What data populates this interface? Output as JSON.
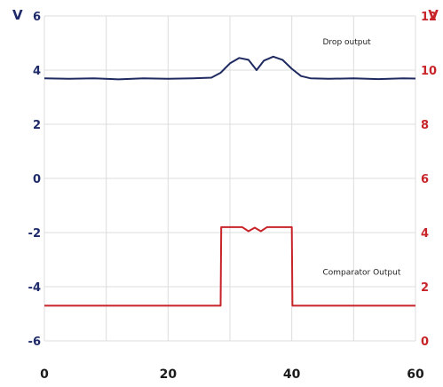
{
  "chart_data": {
    "type": "line",
    "y_left": {
      "unit": "V",
      "ticks": [
        "6",
        "4",
        "2",
        "0",
        "-2",
        "-4",
        "-6"
      ],
      "range": [
        -6,
        6
      ],
      "color": "#1e2a6a"
    },
    "y_right": {
      "unit": "V",
      "ticks": [
        "12",
        "10",
        "8",
        "6",
        "4",
        "2",
        "0"
      ],
      "range": [
        0,
        12
      ],
      "color": "#c8252a"
    },
    "x_axis": {
      "ticks": [
        "0",
        "20",
        "40",
        "60"
      ],
      "range": [
        0,
        60
      ]
    },
    "grid": true,
    "series": [
      {
        "name": "Drop output",
        "axis": "left",
        "color": "#1f2a60",
        "points": [
          [
            0,
            3.7
          ],
          [
            4,
            3.68
          ],
          [
            8,
            3.7
          ],
          [
            12,
            3.66
          ],
          [
            16,
            3.7
          ],
          [
            20,
            3.68
          ],
          [
            24,
            3.7
          ],
          [
            27,
            3.72
          ],
          [
            28.5,
            3.9
          ],
          [
            30,
            4.25
          ],
          [
            31.5,
            4.45
          ],
          [
            33,
            4.38
          ],
          [
            34.3,
            4.0
          ],
          [
            35.5,
            4.35
          ],
          [
            37,
            4.5
          ],
          [
            38.5,
            4.38
          ],
          [
            40,
            4.05
          ],
          [
            41.5,
            3.78
          ],
          [
            43,
            3.7
          ],
          [
            46,
            3.68
          ],
          [
            50,
            3.7
          ],
          [
            54,
            3.67
          ],
          [
            58,
            3.7
          ],
          [
            60,
            3.69
          ]
        ]
      },
      {
        "name": "Comparator Output",
        "axis": "right",
        "color": "#c8252a",
        "points": [
          [
            0,
            1.3
          ],
          [
            28.5,
            1.3
          ],
          [
            28.6,
            4.2
          ],
          [
            32,
            4.2
          ],
          [
            33,
            4.05
          ],
          [
            34,
            4.18
          ],
          [
            35,
            4.05
          ],
          [
            36,
            4.2
          ],
          [
            40,
            4.2
          ],
          [
            40.1,
            1.3
          ],
          [
            60,
            1.3
          ]
        ]
      }
    ],
    "annotations": [
      {
        "text": "Drop output",
        "x": 45,
        "y": 4.95,
        "axis": "left"
      },
      {
        "text": "Comparator Output",
        "x": 45,
        "y": -3.55,
        "axis": "left"
      }
    ]
  }
}
